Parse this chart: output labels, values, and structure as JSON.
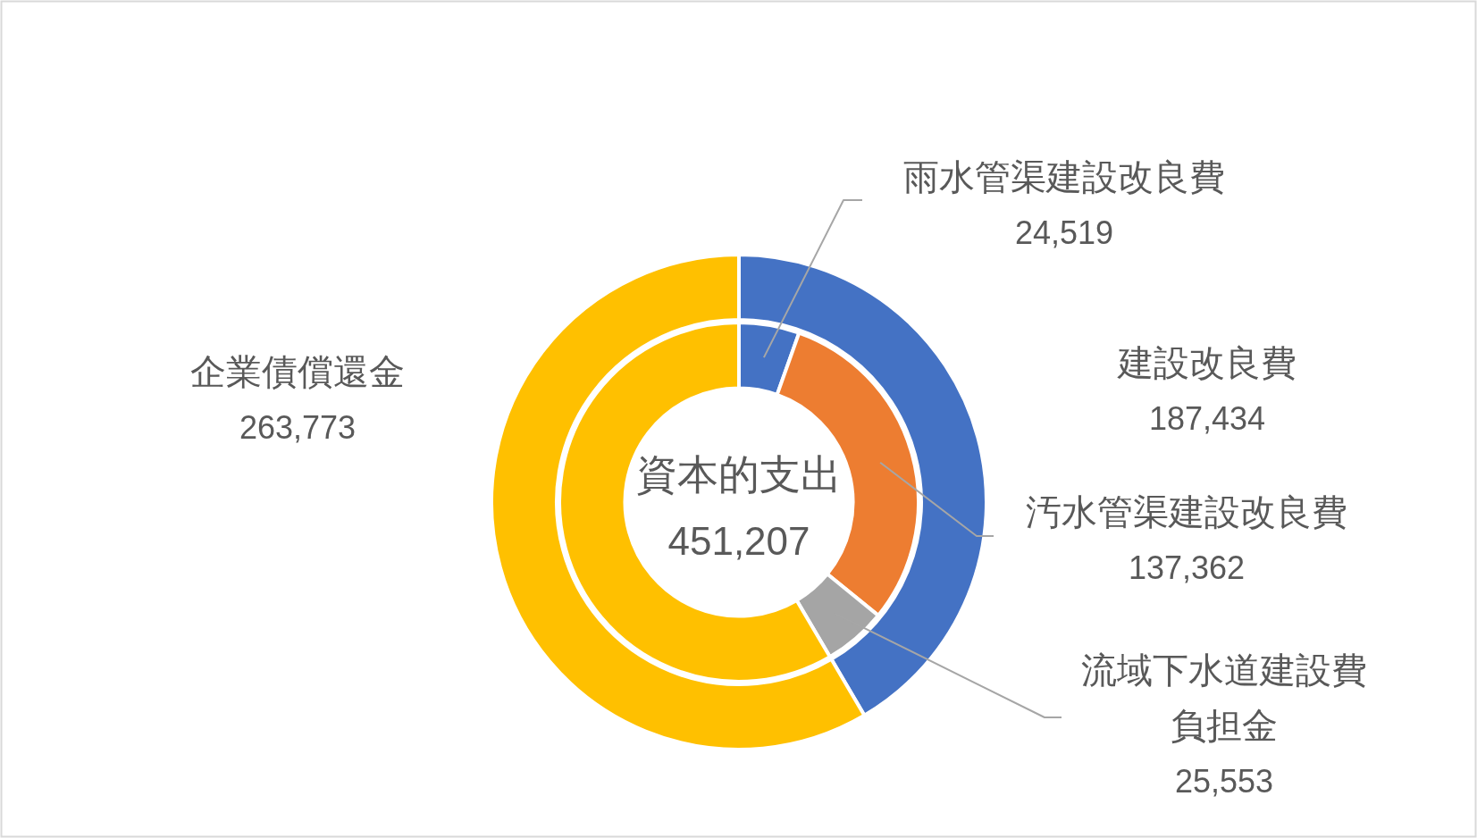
{
  "chart_data": [
    {
      "type": "donut",
      "categories": [
        "建設改良費",
        "企業債償還金"
      ],
      "values": [
        187434,
        263773
      ],
      "colors": [
        "#4472c4",
        "#ffc000"
      ],
      "value_labels": [
        "187,434",
        "263,773"
      ],
      "annotations": [
        "資本的支出",
        "451,207"
      ]
    },
    {
      "type": "donut",
      "categories": [
        "雨水管渠建設改良費",
        "汚水管渠建設改良費",
        "流域下水道建設費負担金",
        null
      ],
      "values": [
        24519,
        137362,
        25553,
        263773
      ],
      "colors": [
        "#4472c4",
        "#ed7d31",
        "#a5a5a5",
        "#ffc000"
      ],
      "value_labels": [
        "24,519",
        "137,362",
        "25,553",
        null
      ]
    }
  ]
}
